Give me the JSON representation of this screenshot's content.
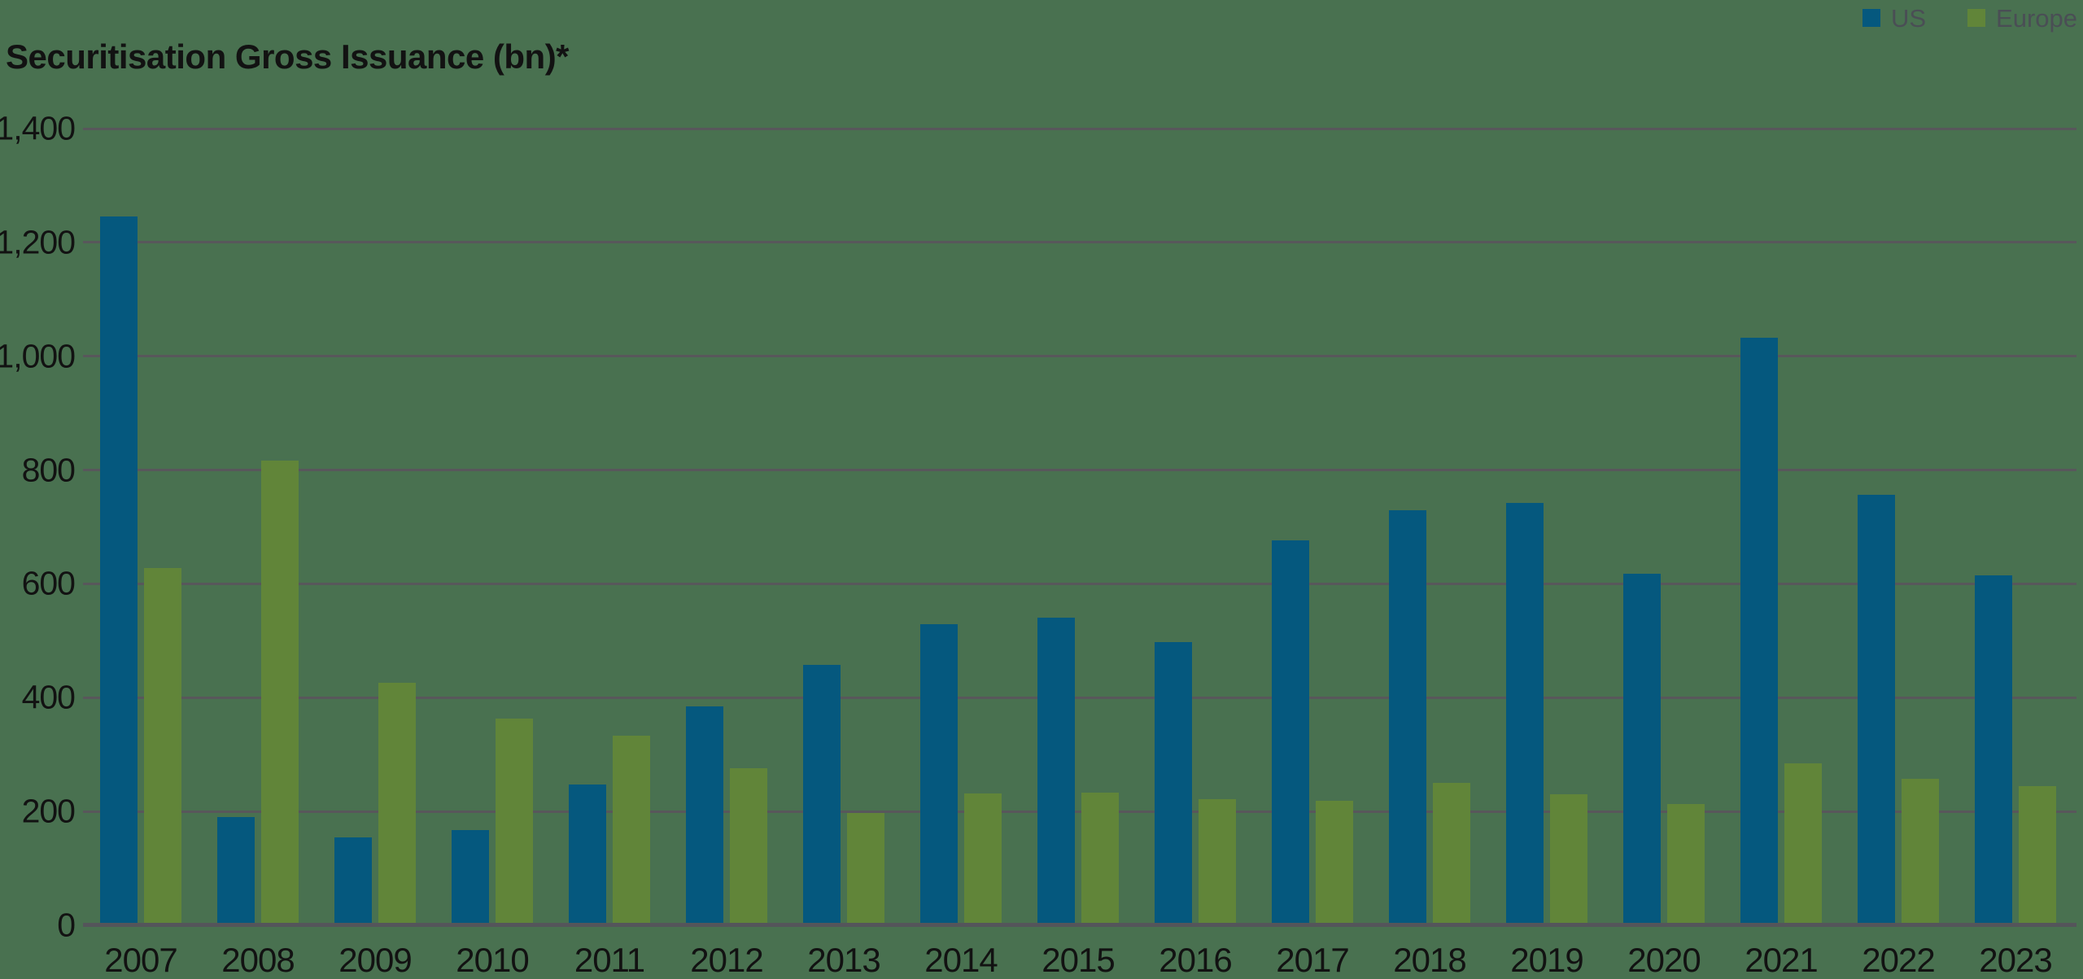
{
  "title": "Securitisation Gross Issuance (bn)*",
  "legend": {
    "position": "top-right",
    "items": [
      {
        "label": "US",
        "color": "#05587E"
      },
      {
        "label": "Europe",
        "color": "#618539"
      }
    ]
  },
  "colors": {
    "background": "#497150",
    "gridline": "#58575B",
    "axis_line": "#54555A",
    "tick_label": "#121212",
    "legend_text": "#4A4E55",
    "us_bar": "#05587E",
    "europe_bar": "#618539"
  },
  "chart_data": {
    "type": "bar",
    "title": "Securitisation Gross Issuance (bn)*",
    "xlabel": "",
    "ylabel": "",
    "categories": [
      "2007",
      "2008",
      "2009",
      "2010",
      "2011",
      "2012",
      "2013",
      "2014",
      "2015",
      "2016",
      "2017",
      "2018",
      "2019",
      "2020",
      "2021",
      "2022",
      "2023"
    ],
    "series": [
      {
        "name": "US",
        "color": "#05587E",
        "values": [
          1245,
          190,
          155,
          167,
          248,
          384,
          457,
          529,
          540,
          497,
          676,
          730,
          742,
          618,
          1032,
          757,
          615
        ]
      },
      {
        "name": "Europe",
        "color": "#618539",
        "values": [
          628,
          816,
          426,
          363,
          333,
          276,
          197,
          232,
          233,
          221,
          219,
          250,
          230,
          213,
          285,
          258,
          244
        ]
      }
    ],
    "ylim": [
      0,
      1400
    ],
    "yticks": [
      0,
      200,
      400,
      600,
      800,
      1000,
      1200,
      1400
    ],
    "ytick_labels": [
      "0",
      "200",
      "400",
      "600",
      "800",
      "1,000",
      "1,200",
      "1,400"
    ],
    "grid": true,
    "legend_position": "top-right"
  }
}
